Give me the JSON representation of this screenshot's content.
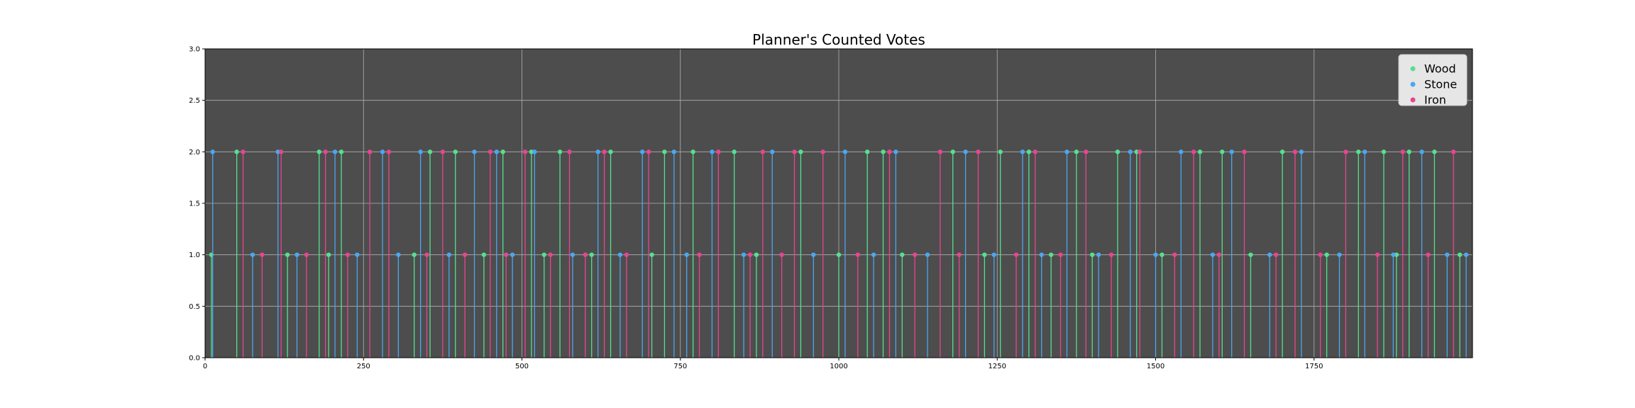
{
  "chart_data": {
    "type": "line",
    "title": "Planner's Counted Votes",
    "xlabel": "",
    "ylabel": "",
    "xlim": [
      0,
      2000
    ],
    "ylim": [
      0,
      3.0
    ],
    "x_ticks": [
      0,
      250,
      500,
      750,
      1000,
      1250,
      1500,
      1750
    ],
    "y_ticks": [
      "0.0",
      "0.5",
      "1.0",
      "1.5",
      "2.0",
      "2.5",
      "3.0"
    ],
    "grid": true,
    "legend_position": "upper right",
    "background": "#4d4d4d",
    "series": [
      {
        "name": "Wood",
        "color": "#55e08f",
        "x": [
          10,
          50,
          130,
          180,
          195,
          215,
          330,
          355,
          395,
          440,
          470,
          515,
          535,
          560,
          610,
          640,
          705,
          725,
          770,
          835,
          870,
          940,
          1000,
          1045,
          1070,
          1100,
          1180,
          1230,
          1255,
          1300,
          1335,
          1375,
          1400,
          1440,
          1470,
          1510,
          1570,
          1605,
          1650,
          1700,
          1770,
          1820,
          1860,
          1880,
          1900,
          1940,
          1980
        ],
        "y": [
          1,
          2,
          1,
          2,
          1,
          2,
          1,
          2,
          2,
          1,
          2,
          2,
          1,
          2,
          1,
          2,
          1,
          2,
          2,
          2,
          1,
          2,
          1,
          2,
          2,
          1,
          2,
          1,
          2,
          2,
          1,
          2,
          1,
          2,
          2,
          1,
          2,
          2,
          1,
          2,
          1,
          2,
          2,
          1,
          2,
          2,
          1
        ]
      },
      {
        "name": "Stone",
        "color": "#4da6f0",
        "x": [
          12,
          75,
          115,
          145,
          205,
          240,
          280,
          305,
          340,
          385,
          425,
          460,
          485,
          520,
          580,
          620,
          655,
          690,
          740,
          760,
          800,
          850,
          895,
          960,
          1010,
          1055,
          1090,
          1140,
          1200,
          1245,
          1290,
          1320,
          1360,
          1410,
          1460,
          1500,
          1540,
          1590,
          1620,
          1680,
          1730,
          1790,
          1830,
          1875,
          1920,
          1960,
          1990
        ],
        "y": [
          2,
          1,
          2,
          1,
          2,
          1,
          2,
          1,
          2,
          1,
          2,
          2,
          1,
          2,
          1,
          2,
          1,
          2,
          2,
          1,
          2,
          1,
          2,
          1,
          2,
          1,
          2,
          1,
          2,
          1,
          2,
          1,
          2,
          1,
          2,
          1,
          2,
          1,
          2,
          1,
          2,
          1,
          2,
          1,
          2,
          1,
          1
        ]
      },
      {
        "name": "Iron",
        "color": "#e8458f",
        "x": [
          60,
          90,
          120,
          160,
          190,
          225,
          260,
          290,
          350,
          375,
          410,
          450,
          475,
          505,
          545,
          575,
          600,
          630,
          665,
          700,
          780,
          810,
          860,
          880,
          910,
          930,
          975,
          1030,
          1080,
          1120,
          1160,
          1190,
          1220,
          1280,
          1310,
          1350,
          1390,
          1430,
          1475,
          1530,
          1560,
          1600,
          1640,
          1690,
          1720,
          1760,
          1800,
          1850,
          1890,
          1930,
          1970
        ],
        "y": [
          2,
          1,
          2,
          1,
          2,
          1,
          2,
          2,
          1,
          2,
          1,
          2,
          1,
          2,
          1,
          2,
          1,
          2,
          1,
          2,
          1,
          2,
          1,
          2,
          1,
          2,
          2,
          1,
          2,
          1,
          2,
          1,
          2,
          1,
          2,
          1,
          2,
          1,
          2,
          1,
          2,
          1,
          2,
          1,
          2,
          1,
          2,
          1,
          2,
          1,
          2
        ]
      }
    ]
  }
}
